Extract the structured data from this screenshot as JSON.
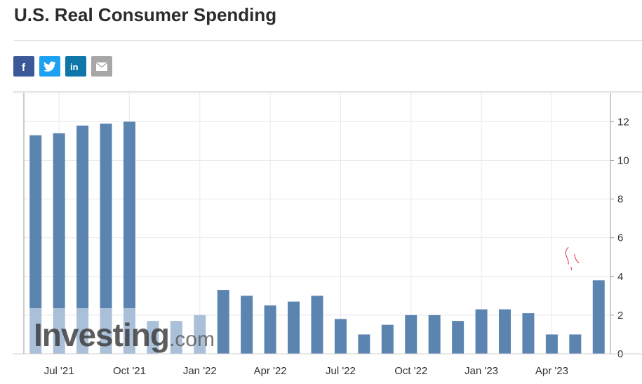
{
  "page": {
    "title": "U.S. Real Consumer Spending"
  },
  "share": [
    {
      "name": "facebook-share-button",
      "icon": "facebook-icon",
      "color": "#3b5998"
    },
    {
      "name": "twitter-share-button",
      "icon": "twitter-icon",
      "color": "#1da1f2"
    },
    {
      "name": "linkedin-share-button",
      "icon": "linkedin-icon",
      "color": "#0e76a8"
    },
    {
      "name": "email-share-button",
      "icon": "email-icon",
      "color": "#a7a7a7"
    }
  ],
  "watermark": {
    "brand": "Investing",
    "suffix": ".com"
  },
  "chart_data": {
    "type": "bar",
    "categories": [
      "Jun '21",
      "Jul '21",
      "Aug '21",
      "Sep '21",
      "Oct '21",
      "Nov '21",
      "Dec '21",
      "Jan '22",
      "Feb '22",
      "Mar '22",
      "Apr '22",
      "May '22",
      "Jun '22",
      "Jul '22",
      "Aug '22",
      "Sep '22",
      "Oct '22",
      "Nov '22",
      "Dec '22",
      "Jan '23",
      "Feb '23",
      "Mar '23",
      "Apr '23",
      "May '23",
      "Jun '23"
    ],
    "values": [
      11.3,
      11.4,
      11.8,
      11.9,
      12.0,
      1.7,
      1.7,
      2.0,
      3.3,
      3.0,
      2.5,
      2.7,
      3.0,
      1.8,
      1.0,
      1.5,
      2.0,
      2.0,
      1.7,
      2.3,
      2.3,
      2.1,
      1.0,
      1.0,
      3.8
    ],
    "ylim": [
      0,
      13.5
    ],
    "yticks": [
      "0",
      "2",
      "4",
      "6",
      "8",
      "10",
      "12"
    ],
    "xticks": [
      {
        "label": "Jul '21",
        "index": 1
      },
      {
        "label": "Oct '21",
        "index": 4
      },
      {
        "label": "Jan '22",
        "index": 7
      },
      {
        "label": "Apr '22",
        "index": 10
      },
      {
        "label": "Jul '22",
        "index": 13
      },
      {
        "label": "Oct '22",
        "index": 16
      },
      {
        "label": "Jan '23",
        "index": 19
      },
      {
        "label": "Apr '23",
        "index": 22
      }
    ],
    "y_axis_position": "right",
    "grid": true,
    "bar_color": "#5b84b1",
    "faded_bar_color": "#aabfd8",
    "grid_color": "#e8e8e8",
    "axis_color": "#9a9a9a",
    "annotation_color": "#e03030"
  }
}
